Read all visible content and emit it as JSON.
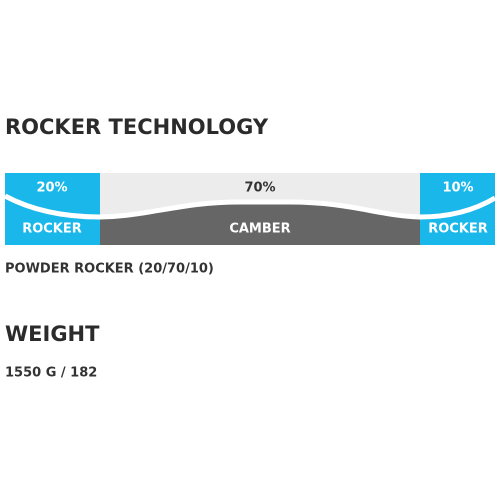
{
  "header": {
    "title": "ROCKER TECHNOLOGY"
  },
  "profile": {
    "segments": [
      {
        "percent": "20%",
        "label": "ROCKER"
      },
      {
        "percent": "70%",
        "label": "CAMBER"
      },
      {
        "percent": "10%",
        "label": "ROCKER"
      }
    ],
    "caption": "POWDER ROCKER (20/70/10)"
  },
  "weight": {
    "title": "WEIGHT",
    "value": "1550 G / 182"
  }
}
